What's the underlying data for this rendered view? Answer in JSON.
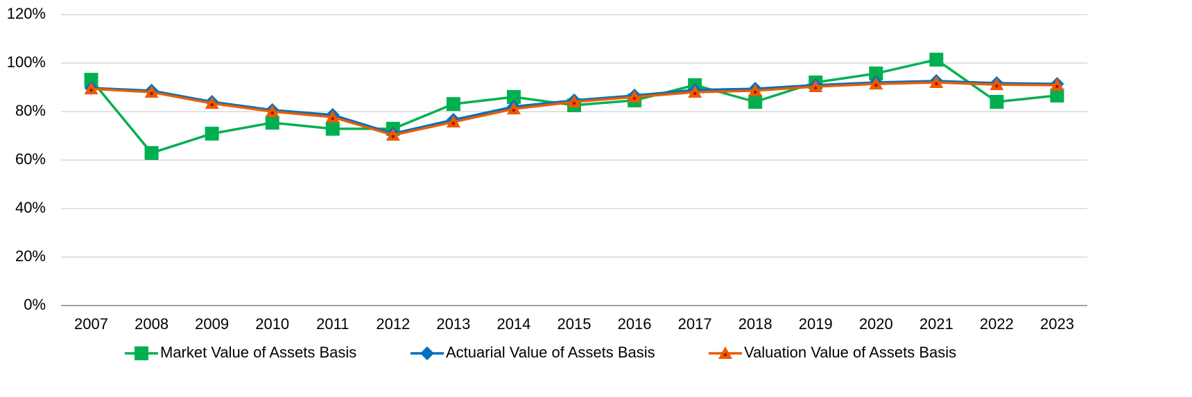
{
  "chart_data": {
    "type": "line",
    "categories": [
      "2007",
      "2008",
      "2009",
      "2010",
      "2011",
      "2012",
      "2013",
      "2014",
      "2015",
      "2016",
      "2017",
      "2018",
      "2019",
      "2020",
      "2021",
      "2022",
      "2023"
    ],
    "series": [
      {
        "name": "Market Value of Assets Basis",
        "color": "#00b050",
        "marker": "square",
        "values": [
          93.1,
          62.9,
          70.9,
          75.4,
          72.9,
          72.9,
          83.1,
          86.0,
          82.6,
          84.6,
          90.9,
          84.0,
          92.0,
          95.7,
          101.4,
          84.0,
          86.6
        ]
      },
      {
        "name": "Actuarial Value of Assets Basis",
        "color": "#0070c0",
        "marker": "diamond",
        "values": [
          89.7,
          88.6,
          84.0,
          80.6,
          78.6,
          70.9,
          76.6,
          82.0,
          84.6,
          86.6,
          88.9,
          89.4,
          90.9,
          92.0,
          92.6,
          91.7,
          91.4
        ]
      },
      {
        "name": "Valuation Value of Assets Basis",
        "color": "#e85d00",
        "marker": "triangle",
        "values": [
          89.4,
          88.0,
          83.4,
          80.0,
          77.7,
          70.3,
          75.7,
          81.1,
          84.0,
          86.0,
          88.0,
          88.6,
          90.3,
          91.4,
          92.0,
          91.1,
          90.9
        ]
      }
    ],
    "ylim": [
      0,
      120
    ],
    "yticks": [
      {
        "value": 0,
        "label": "0%"
      },
      {
        "value": 20,
        "label": "20%"
      },
      {
        "value": 40,
        "label": "40%"
      },
      {
        "value": 60,
        "label": "60%"
      },
      {
        "value": 80,
        "label": "80%"
      },
      {
        "value": 100,
        "label": "100%"
      },
      {
        "value": 120,
        "label": "120%"
      }
    ],
    "grid": true,
    "legend": "bottom"
  }
}
